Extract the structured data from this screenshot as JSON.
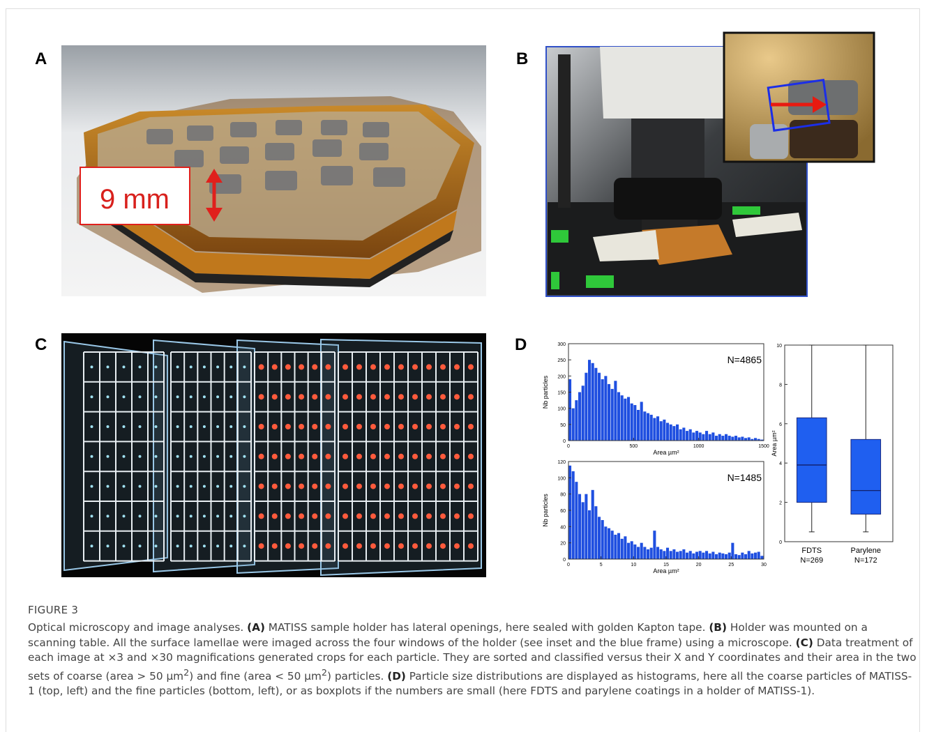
{
  "panel_labels": [
    "A",
    "B",
    "C",
    "D"
  ],
  "panel_a": {
    "annotation": "9 mm"
  },
  "chart_data": [
    {
      "type": "histogram",
      "color": "#1f4fe0",
      "annotation": "N=4865",
      "xlabel": "Area µm²",
      "ylabel": "Nb particles",
      "bins": [
        0,
        25,
        50,
        75,
        100,
        125,
        150,
        175,
        200,
        225,
        250,
        275,
        300,
        325,
        350,
        375,
        400,
        425,
        450,
        475,
        500,
        525,
        550,
        575,
        600,
        625,
        650,
        675,
        700,
        725,
        750,
        775,
        800,
        825,
        850,
        875,
        900,
        925,
        950,
        975,
        1000,
        1025,
        1050,
        1075,
        1100,
        1125,
        1150,
        1175,
        1200,
        1225,
        1250,
        1275,
        1300,
        1325,
        1350,
        1375,
        1400,
        1425,
        1450,
        1475,
        1500
      ],
      "values": [
        190,
        100,
        125,
        150,
        170,
        210,
        250,
        240,
        225,
        210,
        190,
        200,
        175,
        160,
        185,
        150,
        140,
        130,
        135,
        115,
        110,
        95,
        120,
        90,
        85,
        80,
        70,
        75,
        60,
        65,
        55,
        50,
        45,
        50,
        35,
        40,
        30,
        35,
        25,
        30,
        25,
        20,
        30,
        20,
        25,
        15,
        20,
        15,
        20,
        15,
        12,
        15,
        10,
        12,
        8,
        10,
        5,
        8,
        5,
        3
      ],
      "xlim": [
        0,
        1500
      ],
      "xticks": [
        0,
        500,
        1000,
        1500
      ],
      "ylim": [
        0,
        300
      ],
      "yticks": [
        0,
        50,
        100,
        150,
        200,
        250,
        300
      ]
    },
    {
      "type": "histogram",
      "color": "#1f4fe0",
      "annotation": "N=1485",
      "xlabel": "Area µm²",
      "ylabel": "Nb particles",
      "bins": [
        0,
        0.5,
        1,
        1.5,
        2,
        2.5,
        3,
        3.5,
        4,
        4.5,
        5,
        5.5,
        6,
        6.5,
        7,
        7.5,
        8,
        8.5,
        9,
        9.5,
        10,
        10.5,
        11,
        11.5,
        12,
        12.5,
        13,
        13.5,
        14,
        14.5,
        15,
        15.5,
        16,
        16.5,
        17,
        17.5,
        18,
        18.5,
        19,
        19.5,
        20,
        20.5,
        21,
        21.5,
        22,
        22.5,
        23,
        23.5,
        24,
        24.5,
        25,
        25.5,
        26,
        26.5,
        27,
        27.5,
        28,
        28.5,
        29,
        29.5,
        30
      ],
      "values": [
        115,
        108,
        95,
        80,
        70,
        80,
        60,
        85,
        65,
        52,
        48,
        40,
        38,
        35,
        30,
        32,
        25,
        28,
        20,
        22,
        18,
        15,
        20,
        15,
        12,
        14,
        35,
        15,
        12,
        10,
        14,
        10,
        12,
        9,
        10,
        12,
        8,
        10,
        7,
        9,
        10,
        8,
        10,
        7,
        9,
        6,
        8,
        7,
        6,
        8,
        20,
        6,
        5,
        8,
        6,
        10,
        7,
        8,
        9,
        4
      ],
      "xlim": [
        0,
        30
      ],
      "xticks": [
        0,
        5,
        10,
        15,
        20,
        25,
        30
      ],
      "ylim": [
        0,
        120
      ],
      "yticks": [
        0,
        20,
        40,
        60,
        80,
        100,
        120
      ]
    },
    {
      "type": "box",
      "color": "#1f5ff0",
      "ylabel": "Area µm²",
      "categories": [
        "FDTS",
        "Parylene"
      ],
      "n_labels": [
        "N=269",
        "N=172"
      ],
      "boxes": [
        {
          "whisker_low": 0.5,
          "q1": 2,
          "median": 3.9,
          "q3": 6.3,
          "whisker_high": 10
        },
        {
          "whisker_low": 0.5,
          "q1": 1.4,
          "median": 2.6,
          "q3": 5.2,
          "whisker_high": 10
        }
      ],
      "ylim": [
        0,
        10
      ],
      "yticks": [
        0,
        2,
        4,
        6,
        8,
        10
      ]
    }
  ],
  "caption": {
    "figure_label": "FIGURE 3",
    "runs": [
      {
        "text": "Optical microscopy and image analyses. "
      },
      {
        "text": "(A)",
        "bold": true
      },
      {
        "text": " MATISS sample holder has lateral openings, here sealed with golden Kapton tape. "
      },
      {
        "text": "(B)",
        "bold": true
      },
      {
        "text": " Holder was mounted on a scanning table. All the surface lamellae were imaged across the four windows of the holder (see inset and the blue frame) using a microscope. "
      },
      {
        "text": "(C)",
        "bold": true
      },
      {
        "text": " Data treatment of each image at ×3 and ×30 magnifications generated crops for each particle. They are sorted and classified versus their X and Y coordinates and their area in the two sets of coarse (area > 50 µm"
      },
      {
        "text": "2",
        "sup": true
      },
      {
        "text": ") and fine (area < 50 µm"
      },
      {
        "text": "2",
        "sup": true
      },
      {
        "text": ") particles. "
      },
      {
        "text": "(D)",
        "bold": true
      },
      {
        "text": " Particle size distributions are displayed as histograms, here all the coarse particles of MATISS-1 (top, left) and the fine particles (bottom, left), or as boxplots if the numbers are small (here FDTS and parylene coatings in a holder of MATISS-1)."
      }
    ]
  }
}
